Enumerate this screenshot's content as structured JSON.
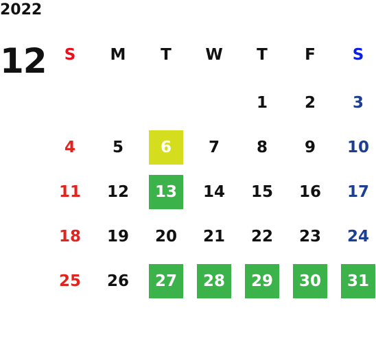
{
  "header": {
    "year": "2022",
    "month": "12"
  },
  "calendar": {
    "weekdays": [
      "S",
      "M",
      "T",
      "W",
      "T",
      "F",
      "S"
    ],
    "weeks": [
      [
        null,
        null,
        null,
        null,
        1,
        2,
        3
      ],
      [
        4,
        5,
        {
          "day": 6,
          "color": "#d5dd1f"
        },
        7,
        8,
        9,
        10
      ],
      [
        11,
        12,
        {
          "day": 13,
          "color": "#3cb34a"
        },
        14,
        15,
        16,
        17
      ],
      [
        18,
        19,
        20,
        21,
        22,
        23,
        24
      ],
      [
        25,
        26,
        {
          "day": 27,
          "color": "#3cb34a"
        },
        {
          "day": 28,
          "color": "#3cb34a"
        },
        {
          "day": 29,
          "color": "#3cb34a"
        },
        {
          "day": 30,
          "color": "#3cb34a"
        },
        {
          "day": 31,
          "color": "#3cb34a"
        }
      ]
    ]
  }
}
